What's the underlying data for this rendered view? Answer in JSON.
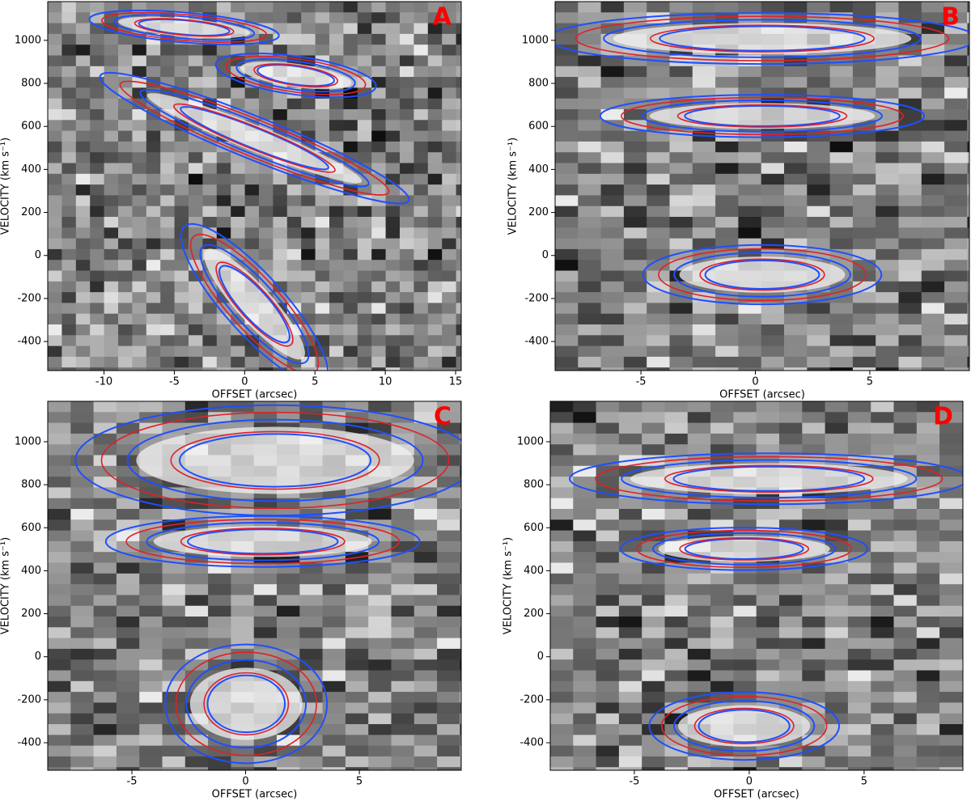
{
  "chart_data": [
    {
      "type": "pv-image",
      "label": "A",
      "xlabel": "OFFSET (arcsec)",
      "ylabel": "VELOCITY (km s⁻¹)",
      "xlim": [
        -14,
        15.4
      ],
      "xticks": [
        -10,
        -5,
        0,
        5,
        10,
        15
      ],
      "ylim": [
        -535,
        1180
      ],
      "yticks": [
        -400,
        -200,
        0,
        200,
        400,
        600,
        800,
        1000
      ]
    },
    {
      "type": "pv-image",
      "label": "B",
      "xlabel": "OFFSET (arcsec)",
      "ylabel": "VELOCITY (km s⁻¹)",
      "xlim": [
        -8.75,
        9.35
      ],
      "xticks": [
        -5,
        0,
        5
      ],
      "ylim": [
        -535,
        1180
      ],
      "yticks": [
        -400,
        -200,
        0,
        200,
        400,
        600,
        800,
        1000
      ]
    },
    {
      "type": "pv-image",
      "label": "C",
      "xlabel": "OFFSET (arcsec)",
      "ylabel": "VELOCITY (km s⁻¹)",
      "xlim": [
        -8.7,
        9.48
      ],
      "xticks": [
        -5,
        0,
        5
      ],
      "ylim": [
        -528,
        1188
      ],
      "yticks": [
        -400,
        -200,
        0,
        200,
        400,
        600,
        800,
        1000
      ]
    },
    {
      "type": "pv-image",
      "label": "D",
      "xlabel": "OFFSET (arcsec)",
      "ylabel": "VELOCITY (km s⁻¹)",
      "xlim": [
        -8.66,
        9.3
      ],
      "xticks": [
        -5,
        0,
        5
      ],
      "ylim": [
        -528,
        1188
      ],
      "yticks": [
        -400,
        -200,
        0,
        200,
        400,
        600,
        800,
        1000
      ]
    }
  ]
}
